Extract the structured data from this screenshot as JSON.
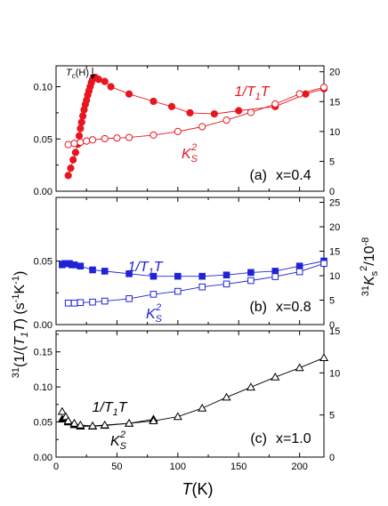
{
  "x_axis": {
    "label_main": "T",
    "label_unit": "(K)",
    "lim": [
      0,
      220
    ],
    "ticks": [
      "0",
      "50",
      "100",
      "150",
      "200"
    ]
  },
  "y_left_label": {
    "prefix": "31",
    "open": "(1/(",
    "t1": "T",
    "t1_sub": "1",
    "t": "T",
    "close": ") (s",
    "s_sup": "-1",
    "mid": "K",
    "k_sup": "-1",
    "end": ")"
  },
  "y_right_label": {
    "prefix": "31",
    "k": "K",
    "k_sub": "s",
    "k_sup": "2",
    "unit": "/10",
    "unit_sup": "-8"
  },
  "colors": {
    "panel_a": "#e8151f",
    "panel_b": "#1f22d6",
    "panel_c": "#000000"
  },
  "chart_data": [
    {
      "type": "scatter",
      "panel": "a",
      "panel_label": "(a)",
      "composition": "x=0.4",
      "tc_label": {
        "main": "T",
        "sub": "c",
        "tail": "(H)"
      },
      "xlim": [
        0,
        220
      ],
      "ylim_left": [
        0,
        0.12
      ],
      "yticks_left": [
        "0.00",
        "0.05",
        "0.10"
      ],
      "ylim_right": [
        0,
        21
      ],
      "yticks_right": [
        "0",
        "5",
        "10",
        "15",
        "20"
      ],
      "series": [
        {
          "name": "1/T1T",
          "axis": "left",
          "marker": "filled-circle",
          "x": [
            10,
            12,
            14,
            16,
            18,
            19,
            20,
            21,
            22,
            23,
            24,
            25,
            26,
            27,
            28,
            29,
            30,
            32,
            35,
            40,
            45,
            60,
            80,
            95,
            110,
            130,
            150,
            180,
            205,
            220
          ],
          "y": [
            0.015,
            0.022,
            0.03,
            0.037,
            0.045,
            0.053,
            0.06,
            0.066,
            0.072,
            0.078,
            0.083,
            0.087,
            0.092,
            0.096,
            0.1,
            0.104,
            0.107,
            0.109,
            0.107,
            0.105,
            0.1,
            0.093,
            0.086,
            0.081,
            0.075,
            0.074,
            0.077,
            0.081,
            0.093,
            0.098
          ]
        },
        {
          "name": "Ks^2",
          "axis": "right",
          "marker": "open-circle",
          "x": [
            10,
            15,
            20,
            25,
            30,
            40,
            50,
            60,
            80,
            100,
            120,
            140,
            160,
            180,
            200,
            220
          ],
          "y": [
            7.8,
            8.0,
            8.2,
            8.4,
            8.6,
            8.8,
            8.9,
            9.0,
            9.4,
            10.0,
            10.8,
            11.9,
            13.2,
            14.6,
            16.3,
            17.4
          ]
        }
      ],
      "series_labels": [
        {
          "main": "1/T",
          "sub": "1",
          "tail": "T"
        },
        {
          "main": "K",
          "sub": "S",
          "sup": "2"
        }
      ]
    },
    {
      "type": "scatter",
      "panel": "b",
      "panel_label": "(b)",
      "composition": "x=0.8",
      "xlim": [
        0,
        220
      ],
      "ylim_left": [
        0,
        0.1
      ],
      "yticks_left": [
        "0.00",
        "0.05"
      ],
      "ylim_right": [
        0,
        26
      ],
      "yticks_right": [
        "0",
        "5",
        "10",
        "15",
        "20",
        "25"
      ],
      "series": [
        {
          "name": "1/T1T",
          "axis": "left",
          "marker": "filled-square",
          "x": [
            5,
            7,
            9,
            11,
            13,
            15,
            20,
            30,
            40,
            60,
            80,
            100,
            120,
            140,
            160,
            180,
            200,
            220
          ],
          "y": [
            0.047,
            0.048,
            0.048,
            0.048,
            0.047,
            0.047,
            0.046,
            0.043,
            0.042,
            0.04,
            0.038,
            0.038,
            0.038,
            0.039,
            0.041,
            0.042,
            0.046,
            0.05
          ]
        },
        {
          "name": "Ks^2",
          "axis": "right",
          "marker": "open-square",
          "x": [
            10,
            15,
            20,
            30,
            40,
            60,
            80,
            100,
            120,
            140,
            160,
            180,
            200,
            220
          ],
          "y": [
            4.4,
            4.4,
            4.5,
            4.6,
            4.8,
            5.3,
            6.2,
            6.8,
            7.7,
            8.3,
            9.0,
            9.8,
            10.8,
            12.5
          ]
        }
      ],
      "series_labels": [
        {
          "main": "1/T",
          "sub": "1",
          "tail": "T"
        },
        {
          "main": "K",
          "sub": "S",
          "sup": "2"
        }
      ]
    },
    {
      "type": "scatter",
      "panel": "c",
      "panel_label": "(c)",
      "composition": "x=1.0",
      "xlim": [
        0,
        220
      ],
      "ylim_left": [
        0,
        0.18
      ],
      "yticks_left": [
        "0.00",
        "0.05",
        "0.10",
        "0.15"
      ],
      "ylim_right": [
        0,
        15
      ],
      "yticks_right": [
        "0",
        "5",
        "10",
        "15"
      ],
      "series": [
        {
          "name": "1/T1T",
          "axis": "left",
          "marker": "filled-triangle",
          "x": [
            5,
            7,
            10,
            15,
            20,
            30,
            40,
            60,
            80
          ],
          "y": [
            0.054,
            0.054,
            0.05,
            0.046,
            0.044,
            0.044,
            0.045,
            0.048,
            0.054
          ]
        },
        {
          "name": "Ks^2",
          "axis": "right",
          "marker": "open-triangle",
          "x": [
            5,
            8,
            10,
            15,
            20,
            30,
            40,
            60,
            80,
            100,
            120,
            140,
            160,
            180,
            200,
            220
          ],
          "y": [
            5.4,
            4.8,
            4.3,
            4.0,
            3.8,
            3.7,
            3.8,
            4.0,
            4.3,
            4.8,
            5.8,
            7.1,
            8.3,
            9.5,
            10.6,
            11.8
          ]
        }
      ],
      "series_labels": [
        {
          "main": "1/T",
          "sub": "1",
          "tail": "T"
        },
        {
          "main": "K",
          "sub": "S",
          "sup": "2"
        }
      ]
    }
  ]
}
